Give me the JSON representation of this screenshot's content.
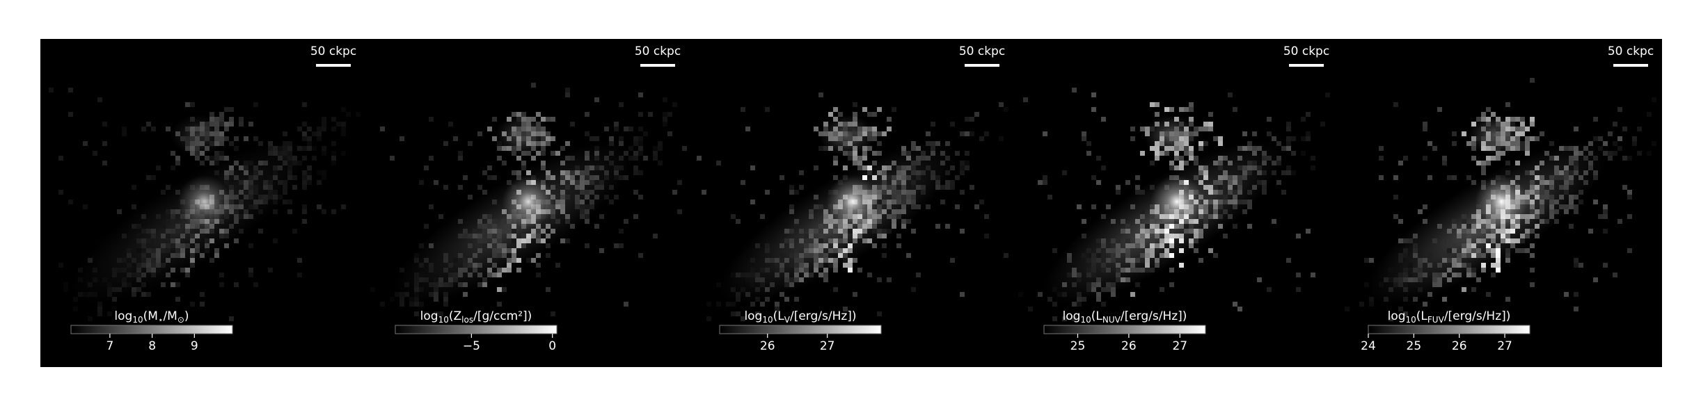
{
  "chart_data": [
    {
      "type": "image",
      "scale_bar_label": "50 ckpc",
      "colorbar_label": [
        "log",
        "10",
        "(M",
        "⋆",
        "/M",
        "⊙",
        ")"
      ],
      "clim": [
        6.08,
        9.9
      ],
      "cticks": [
        7,
        8,
        9
      ]
    },
    {
      "type": "image",
      "scale_bar_label": "50 ckpc",
      "colorbar_label": [
        "log",
        "10",
        "(Z",
        "los",
        "/[g/ccm²])"
      ],
      "clim": [
        -9.7,
        0.27
      ],
      "cticks": [
        {
          "value": -5,
          "label": "−5"
        },
        0
      ]
    },
    {
      "type": "image",
      "scale_bar_label": "50 ckpc",
      "colorbar_label": [
        "log",
        "10",
        "(L",
        "V",
        "/[erg/s/Hz])"
      ],
      "clim": [
        25.2,
        27.9
      ],
      "cticks": [
        26,
        27
      ]
    },
    {
      "type": "image",
      "scale_bar_label": "50 ckpc",
      "colorbar_label": [
        "log",
        "10",
        "(L",
        "NUV",
        "/[erg/s/Hz])"
      ],
      "clim": [
        24.34,
        27.5
      ],
      "cticks": [
        25,
        26,
        27
      ]
    },
    {
      "type": "image",
      "scale_bar_label": "50 ckpc",
      "colorbar_label": [
        "log",
        "10",
        "(L",
        "FUV",
        "/[erg/s/Hz])"
      ],
      "clim": [
        24.0,
        27.55
      ],
      "cticks": [
        24,
        25,
        26,
        27
      ]
    }
  ]
}
